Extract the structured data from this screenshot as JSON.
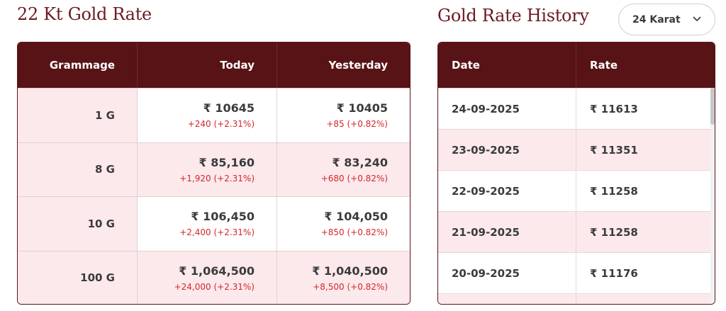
{
  "left": {
    "title": "22 Kt Gold Rate",
    "headers": {
      "grammage": "Grammage",
      "today": "Today",
      "yesterday": "Yesterday"
    },
    "rows": [
      {
        "grammage": "1 G",
        "today": "₹ 10645",
        "today_change": "+240 (+2.31%)",
        "yesterday": "₹ 10405",
        "yesterday_change": "+85 (+0.82%)"
      },
      {
        "grammage": "8 G",
        "today": "₹ 85,160",
        "today_change": "+1,920 (+2.31%)",
        "yesterday": "₹ 83,240",
        "yesterday_change": "+680 (+0.82%)"
      },
      {
        "grammage": "10 G",
        "today": "₹ 106,450",
        "today_change": "+2,400 (+2.31%)",
        "yesterday": "₹ 104,050",
        "yesterday_change": "+850 (+0.82%)"
      },
      {
        "grammage": "100 G",
        "today": "₹ 1,064,500",
        "today_change": "+24,000 (+2.31%)",
        "yesterday": "₹ 1,040,500",
        "yesterday_change": "+8,500 (+0.82%)"
      }
    ]
  },
  "right": {
    "title": "Gold Rate History",
    "karat_select": {
      "value": "24 Karat"
    },
    "headers": {
      "date": "Date",
      "rate": "Rate"
    },
    "rows": [
      {
        "date": "24-09-2025",
        "rate": "₹ 11613"
      },
      {
        "date": "23-09-2025",
        "rate": "₹ 11351"
      },
      {
        "date": "22-09-2025",
        "rate": "₹ 11258"
      },
      {
        "date": "21-09-2025",
        "rate": "₹ 11258"
      },
      {
        "date": "20-09-2025",
        "rate": "₹ 11176"
      }
    ]
  },
  "colors": {
    "header_bg": "#581317",
    "title": "#6b1a22",
    "change": "#d6262b",
    "row_tint": "#fbe9ec"
  },
  "icons": {
    "karat_select": "chevron-down-icon"
  }
}
